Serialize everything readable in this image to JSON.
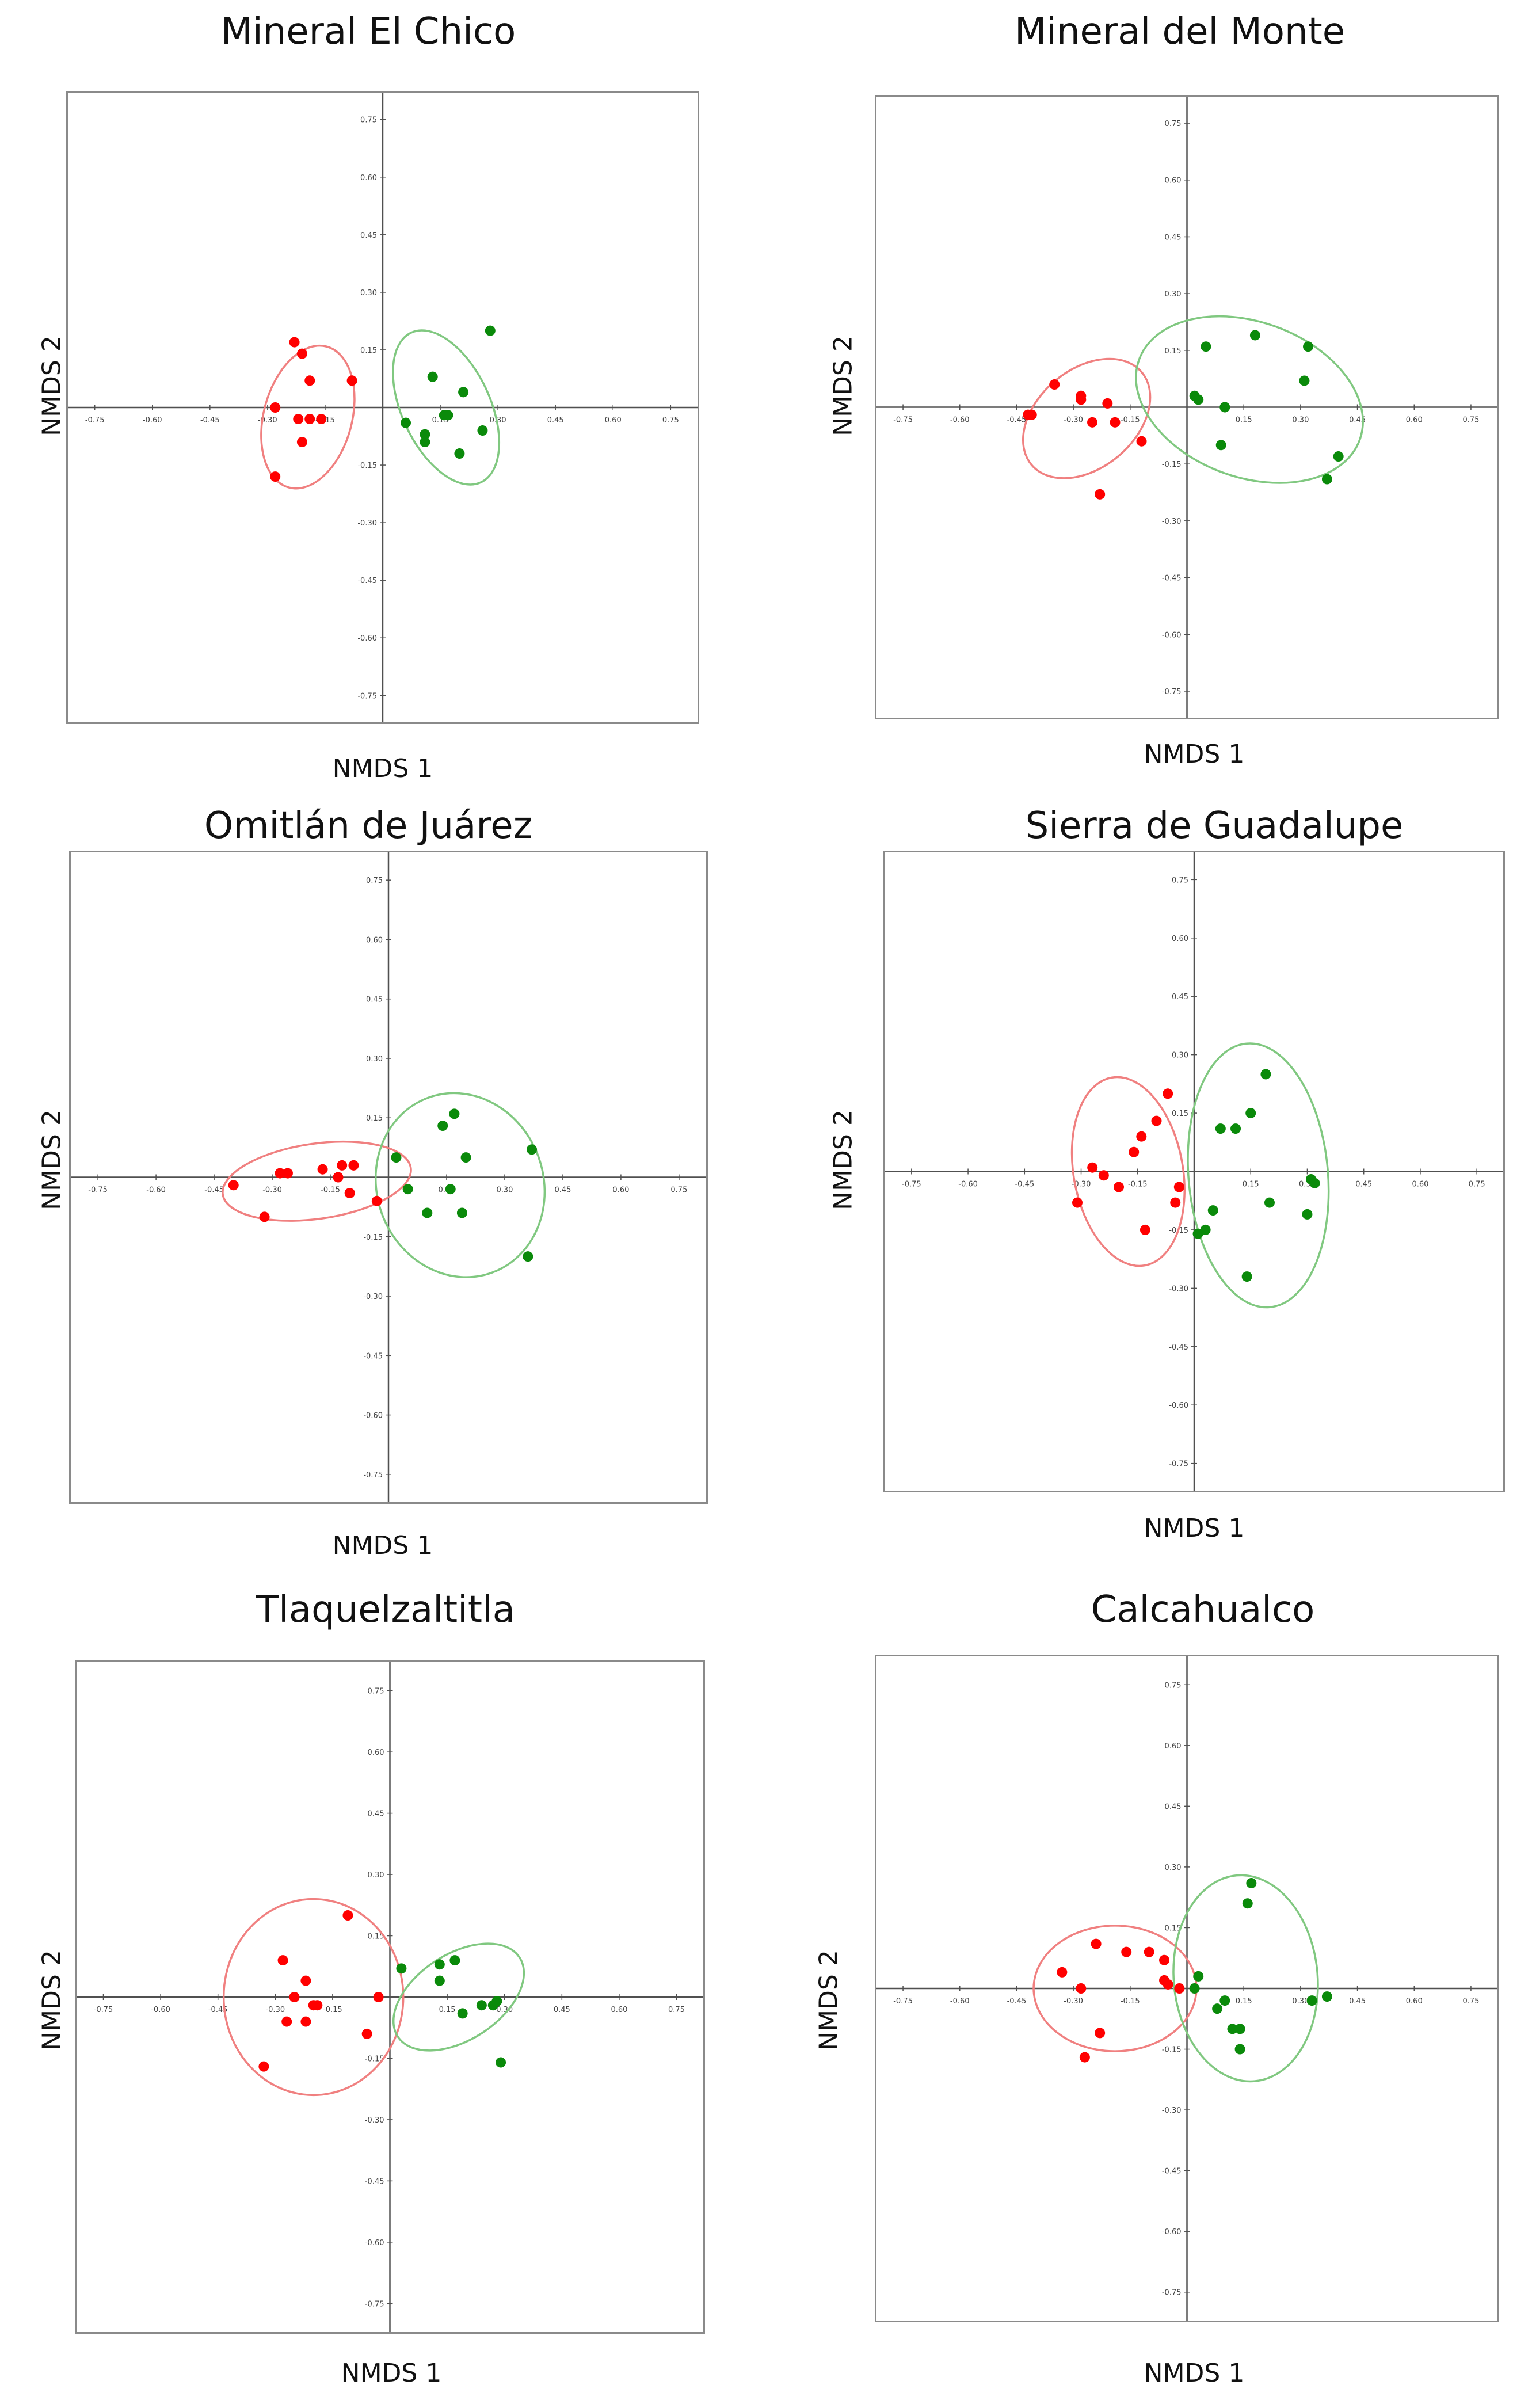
{
  "colors": {
    "group_a": "#ff0000",
    "group_b": "#0a8a0a",
    "ellipse_a": "#f08080",
    "ellipse_b": "#80c880",
    "axis": "#505050"
  },
  "axis_ticks": [
    "-0.75",
    "-0.60",
    "-0.45",
    "-0.30",
    "-0.15",
    "0.15",
    "0.30",
    "0.45",
    "0.60",
    "0.75"
  ],
  "chart_data": [
    {
      "type": "scatter",
      "title": "Mineral El Chico",
      "xlabel": "NMDS 1",
      "ylabel": "NMDS 2",
      "xlim": [
        -0.82,
        0.82
      ],
      "ylim": [
        -0.82,
        0.82
      ],
      "series": [
        {
          "name": "red",
          "color": "#ff0000",
          "points": [
            [
              -0.23,
              0.17
            ],
            [
              -0.21,
              0.14
            ],
            [
              -0.19,
              0.07
            ],
            [
              -0.28,
              0.0
            ],
            [
              -0.22,
              -0.03
            ],
            [
              -0.19,
              -0.03
            ],
            [
              -0.16,
              -0.03
            ],
            [
              -0.21,
              -0.09
            ],
            [
              -0.28,
              -0.18
            ],
            [
              -0.08,
              0.07
            ]
          ],
          "ellipse": {
            "cx": -0.195,
            "cy": -0.025,
            "rx": 0.115,
            "ry": 0.19,
            "angle": -15
          }
        },
        {
          "name": "green",
          "color": "#0a8a0a",
          "points": [
            [
              0.06,
              -0.04
            ],
            [
              0.13,
              0.08
            ],
            [
              0.16,
              -0.02
            ],
            [
              0.17,
              -0.02
            ],
            [
              0.21,
              0.04
            ],
            [
              0.11,
              -0.07
            ],
            [
              0.11,
              -0.09
            ],
            [
              0.2,
              -0.12
            ],
            [
              0.26,
              -0.06
            ],
            [
              0.28,
              0.2
            ]
          ],
          "ellipse": {
            "cx": 0.165,
            "cy": 0.0,
            "rx": 0.115,
            "ry": 0.215,
            "angle": 25
          }
        }
      ]
    },
    {
      "type": "scatter",
      "title": "Mineral del Monte",
      "xlabel": "NMDS 1",
      "ylabel": "NMDS 2",
      "xlim": [
        -0.82,
        0.82
      ],
      "ylim": [
        -0.82,
        0.82
      ],
      "series": [
        {
          "name": "red",
          "color": "#ff0000",
          "points": [
            [
              -0.35,
              0.06
            ],
            [
              -0.28,
              0.03
            ],
            [
              -0.28,
              0.02
            ],
            [
              -0.21,
              0.01
            ],
            [
              -0.41,
              -0.02
            ],
            [
              -0.42,
              -0.02
            ],
            [
              -0.25,
              -0.04
            ],
            [
              -0.19,
              -0.04
            ],
            [
              -0.12,
              -0.09
            ],
            [
              -0.23,
              -0.23
            ]
          ],
          "ellipse": {
            "cx": -0.265,
            "cy": -0.03,
            "rx": 0.13,
            "ry": 0.19,
            "angle": -50
          }
        },
        {
          "name": "green",
          "color": "#0a8a0a",
          "points": [
            [
              0.05,
              0.16
            ],
            [
              0.18,
              0.19
            ],
            [
              0.32,
              0.16
            ],
            [
              0.02,
              0.03
            ],
            [
              0.03,
              0.02
            ],
            [
              0.31,
              0.07
            ],
            [
              0.1,
              0.0
            ],
            [
              0.09,
              -0.1
            ],
            [
              0.4,
              -0.13
            ],
            [
              0.37,
              -0.19
            ]
          ],
          "ellipse": {
            "cx": 0.165,
            "cy": 0.02,
            "rx": 0.31,
            "ry": 0.205,
            "angle": -20
          }
        }
      ]
    },
    {
      "type": "scatter",
      "title": "Omitlán de Juárez",
      "xlabel": "NMDS 1",
      "ylabel": "NMDS 2",
      "xlim": [
        -0.82,
        0.82
      ],
      "ylim": [
        -0.82,
        0.82
      ],
      "series": [
        {
          "name": "red",
          "color": "#ff0000",
          "points": [
            [
              -0.4,
              -0.02
            ],
            [
              -0.28,
              0.01
            ],
            [
              -0.26,
              0.01
            ],
            [
              -0.17,
              0.02
            ],
            [
              -0.12,
              0.03
            ],
            [
              -0.09,
              0.03
            ],
            [
              -0.13,
              0.0
            ],
            [
              -0.1,
              -0.04
            ],
            [
              -0.03,
              -0.06
            ],
            [
              -0.32,
              -0.1
            ]
          ],
          "ellipse": {
            "cx": -0.185,
            "cy": -0.01,
            "rx": 0.245,
            "ry": 0.095,
            "angle": 8
          }
        },
        {
          "name": "green",
          "color": "#0a8a0a",
          "points": [
            [
              0.14,
              0.13
            ],
            [
              0.17,
              0.16
            ],
            [
              0.02,
              0.05
            ],
            [
              0.2,
              0.05
            ],
            [
              0.37,
              0.07
            ],
            [
              0.05,
              -0.03
            ],
            [
              0.16,
              -0.03
            ],
            [
              0.1,
              -0.09
            ],
            [
              0.19,
              -0.09
            ],
            [
              0.36,
              -0.2
            ]
          ],
          "ellipse": {
            "cx": 0.185,
            "cy": -0.02,
            "rx": 0.215,
            "ry": 0.235,
            "angle": 20
          }
        }
      ]
    },
    {
      "type": "scatter",
      "title": "Sierra de Guadalupe",
      "xlabel": "NMDS 1",
      "ylabel": "NMDS 2",
      "xlim": [
        -0.82,
        0.82
      ],
      "ylim": [
        -0.82,
        0.82
      ],
      "series": [
        {
          "name": "red",
          "color": "#ff0000",
          "points": [
            [
              -0.07,
              0.2
            ],
            [
              -0.1,
              0.13
            ],
            [
              -0.14,
              0.09
            ],
            [
              -0.16,
              0.05
            ],
            [
              -0.27,
              0.01
            ],
            [
              -0.24,
              -0.01
            ],
            [
              -0.2,
              -0.04
            ],
            [
              -0.31,
              -0.08
            ],
            [
              -0.13,
              -0.15
            ],
            [
              -0.04,
              -0.04
            ],
            [
              -0.05,
              -0.08
            ]
          ],
          "ellipse": {
            "cx": -0.175,
            "cy": 0.0,
            "rx": 0.145,
            "ry": 0.245,
            "angle": 10
          }
        },
        {
          "name": "green",
          "color": "#0a8a0a",
          "points": [
            [
              0.19,
              0.25
            ],
            [
              0.15,
              0.15
            ],
            [
              0.07,
              0.11
            ],
            [
              0.11,
              0.11
            ],
            [
              0.31,
              -0.02
            ],
            [
              0.32,
              -0.03
            ],
            [
              0.05,
              -0.1
            ],
            [
              0.03,
              -0.15
            ],
            [
              0.2,
              -0.08
            ],
            [
              0.3,
              -0.11
            ],
            [
              0.14,
              -0.27
            ],
            [
              0.01,
              -0.16
            ]
          ],
          "ellipse": {
            "cx": 0.17,
            "cy": -0.01,
            "rx": 0.185,
            "ry": 0.34,
            "angle": 5
          }
        }
      ]
    },
    {
      "type": "scatter",
      "title": "Tlaquelzaltitla",
      "xlabel": "NMDS 1",
      "ylabel": "NMDS 2",
      "xlim": [
        -0.82,
        0.82
      ],
      "ylim": [
        -0.82,
        0.82
      ],
      "series": [
        {
          "name": "red",
          "color": "#ff0000",
          "points": [
            [
              -0.11,
              0.2
            ],
            [
              -0.28,
              0.09
            ],
            [
              -0.22,
              0.04
            ],
            [
              -0.25,
              0.0
            ],
            [
              -0.2,
              -0.02
            ],
            [
              -0.22,
              -0.06
            ],
            [
              -0.27,
              -0.06
            ],
            [
              -0.33,
              -0.17
            ],
            [
              -0.06,
              -0.09
            ],
            [
              -0.03,
              0.0
            ],
            [
              -0.19,
              -0.02
            ]
          ],
          "ellipse": {
            "cx": -0.2,
            "cy": 0.0,
            "rx": 0.235,
            "ry": 0.24,
            "angle": 0
          }
        },
        {
          "name": "green",
          "color": "#0a8a0a",
          "points": [
            [
              0.03,
              0.07
            ],
            [
              0.13,
              0.08
            ],
            [
              0.17,
              0.09
            ],
            [
              0.13,
              0.04
            ],
            [
              0.24,
              -0.02
            ],
            [
              0.27,
              -0.02
            ],
            [
              0.28,
              -0.01
            ],
            [
              0.19,
              -0.04
            ],
            [
              0.29,
              -0.16
            ]
          ],
          "ellipse": {
            "cx": 0.18,
            "cy": 0.0,
            "rx": 0.19,
            "ry": 0.105,
            "angle": 33
          }
        }
      ]
    },
    {
      "type": "scatter",
      "title": "Calcahualco",
      "xlabel": "NMDS 1",
      "ylabel": "NMDS 2",
      "xlim": [
        -0.82,
        0.82
      ],
      "ylim": [
        -0.82,
        0.82
      ],
      "series": [
        {
          "name": "red",
          "color": "#ff0000",
          "points": [
            [
              -0.24,
              0.11
            ],
            [
              -0.16,
              0.09
            ],
            [
              -0.1,
              0.09
            ],
            [
              -0.06,
              0.07
            ],
            [
              -0.33,
              0.04
            ],
            [
              -0.28,
              0.0
            ],
            [
              -0.06,
              0.02
            ],
            [
              -0.05,
              0.01
            ],
            [
              -0.02,
              0.0
            ],
            [
              -0.23,
              -0.11
            ],
            [
              -0.27,
              -0.17
            ]
          ],
          "ellipse": {
            "cx": -0.19,
            "cy": 0.0,
            "rx": 0.215,
            "ry": 0.155,
            "angle": 0
          }
        },
        {
          "name": "green",
          "color": "#0a8a0a",
          "points": [
            [
              0.17,
              0.26
            ],
            [
              0.16,
              0.21
            ],
            [
              0.03,
              0.03
            ],
            [
              0.08,
              -0.05
            ],
            [
              0.1,
              -0.03
            ],
            [
              0.12,
              -0.1
            ],
            [
              0.14,
              -0.1
            ],
            [
              0.14,
              -0.15
            ],
            [
              0.33,
              -0.03
            ],
            [
              0.37,
              -0.02
            ],
            [
              0.02,
              0.0
            ]
          ],
          "ellipse": {
            "cx": 0.155,
            "cy": 0.025,
            "rx": 0.19,
            "ry": 0.255,
            "angle": 5
          }
        }
      ]
    }
  ]
}
